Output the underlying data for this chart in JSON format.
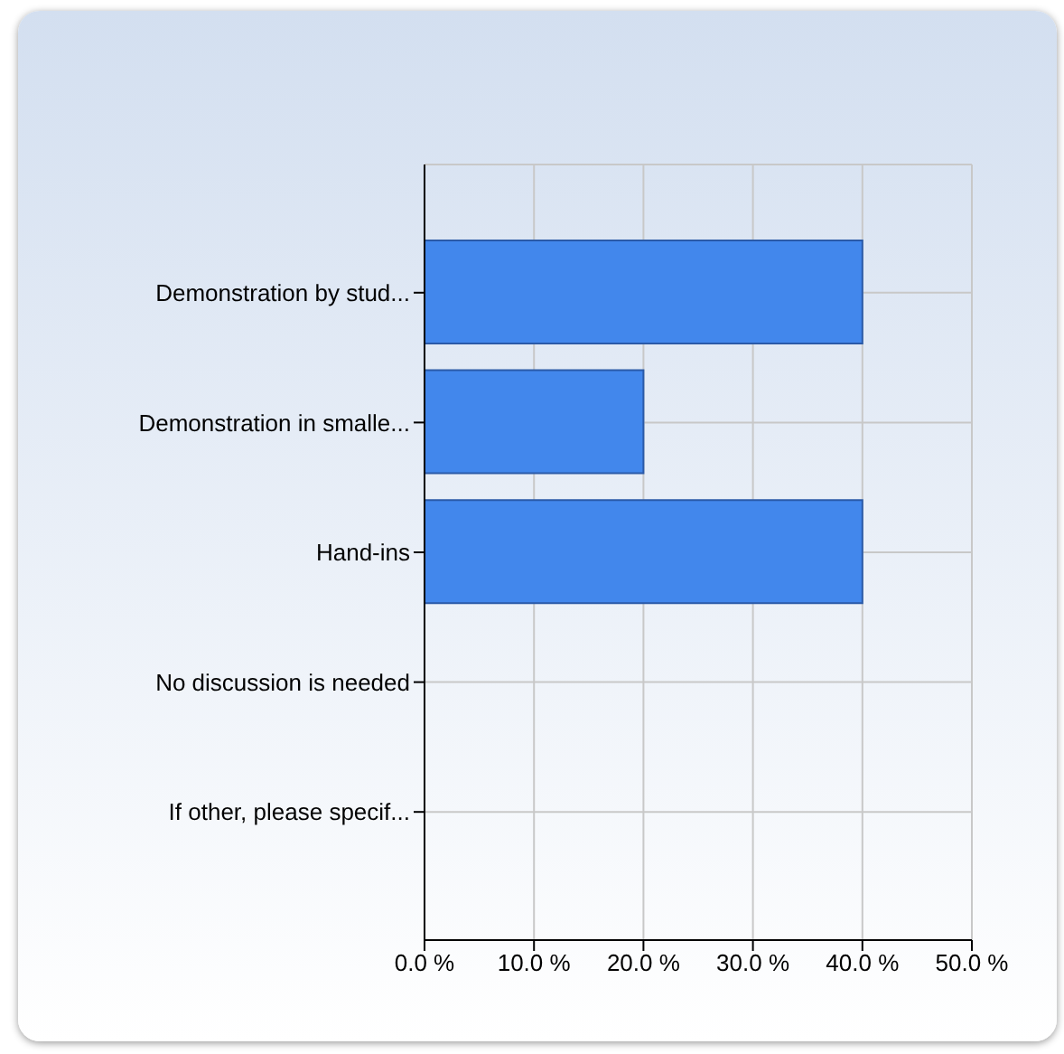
{
  "chart_data": {
    "type": "bar",
    "orientation": "horizontal",
    "categories": [
      "Demonstration by stud...",
      "Demonstration in smalle...",
      "Hand-ins",
      "No discussion is needed",
      "If other, please specif..."
    ],
    "values": [
      40,
      20,
      40,
      0,
      0
    ],
    "color": "#4287ec",
    "xlim": [
      0,
      50
    ],
    "xticks": [
      {
        "value": 0,
        "label": "0.0 %"
      },
      {
        "value": 10,
        "label": "10.0 %"
      },
      {
        "value": 20,
        "label": "20.0 %"
      },
      {
        "value": 30,
        "label": "30.0 %"
      },
      {
        "value": 40,
        "label": "40.0 %"
      },
      {
        "value": 50,
        "label": "50.0 %"
      }
    ],
    "grid": true
  }
}
